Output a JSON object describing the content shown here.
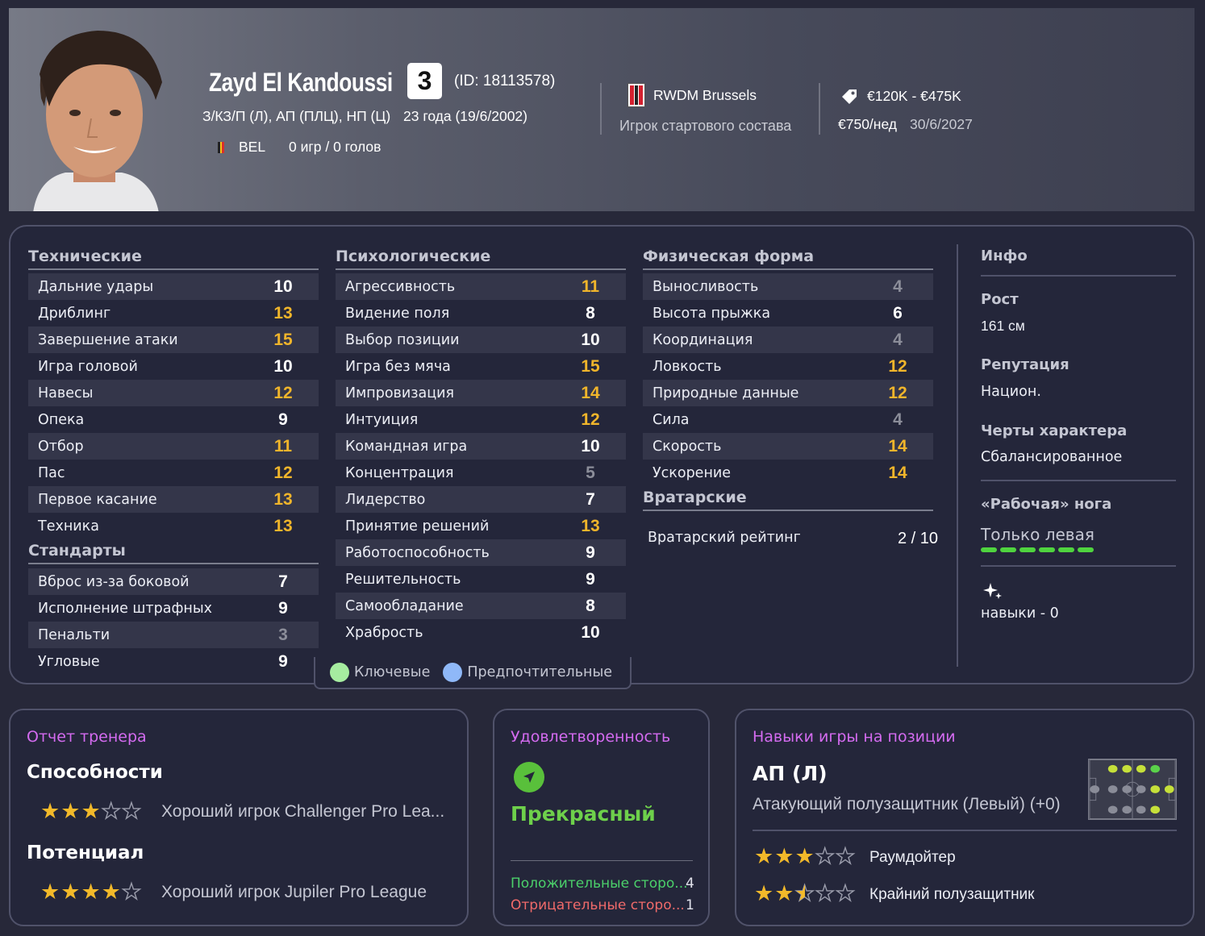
{
  "player": {
    "name": "Zayd El Kandoussi",
    "number": "3",
    "id": "(ID: 18113578)",
    "positions": "З/КЗ/П (Л), АП (ПЛЦ), НП (Ц)",
    "age": "23 года (19/6/2002)",
    "nation": "BEL",
    "caps": "0 игр / 0 голов"
  },
  "club": {
    "name": "RWDM Brussels",
    "role": "Игрок стартового состава"
  },
  "finance": {
    "value": "€120K - €475K",
    "wage": "€750/нед",
    "contract_end": "30/6/2027"
  },
  "technical": {
    "title": "Технические",
    "rows": [
      {
        "label": "Дальние удары",
        "value": "10",
        "level": "mid"
      },
      {
        "label": "Дриблинг",
        "value": "13",
        "level": "high"
      },
      {
        "label": "Завершение атаки",
        "value": "15",
        "level": "high"
      },
      {
        "label": "Игра головой",
        "value": "10",
        "level": "mid"
      },
      {
        "label": "Навесы",
        "value": "12",
        "level": "high"
      },
      {
        "label": "Опека",
        "value": "9",
        "level": "mid"
      },
      {
        "label": "Отбор",
        "value": "11",
        "level": "high"
      },
      {
        "label": "Пас",
        "value": "12",
        "level": "high"
      },
      {
        "label": "Первое касание",
        "value": "13",
        "level": "high"
      },
      {
        "label": "Техника",
        "value": "13",
        "level": "high"
      }
    ]
  },
  "set_pieces": {
    "title": "Стандарты",
    "rows": [
      {
        "label": "Вброс из-за боковой",
        "value": "7",
        "level": "mid"
      },
      {
        "label": "Исполнение штрафных",
        "value": "9",
        "level": "mid"
      },
      {
        "label": "Пенальти",
        "value": "3",
        "level": "low"
      },
      {
        "label": "Угловые",
        "value": "9",
        "level": "mid"
      }
    ]
  },
  "mental": {
    "title": "Психологические",
    "rows": [
      {
        "label": "Агрессивность",
        "value": "11",
        "level": "high"
      },
      {
        "label": "Видение поля",
        "value": "8",
        "level": "mid"
      },
      {
        "label": "Выбор позиции",
        "value": "10",
        "level": "mid"
      },
      {
        "label": "Игра без мяча",
        "value": "15",
        "level": "high"
      },
      {
        "label": "Импровизация",
        "value": "14",
        "level": "high"
      },
      {
        "label": "Интуиция",
        "value": "12",
        "level": "high"
      },
      {
        "label": "Командная игра",
        "value": "10",
        "level": "mid"
      },
      {
        "label": "Концентрация",
        "value": "5",
        "level": "low"
      },
      {
        "label": "Лидерство",
        "value": "7",
        "level": "mid"
      },
      {
        "label": "Принятие решений",
        "value": "13",
        "level": "high"
      },
      {
        "label": "Работоспособность",
        "value": "9",
        "level": "mid"
      },
      {
        "label": "Решительность",
        "value": "9",
        "level": "mid"
      },
      {
        "label": "Самообладание",
        "value": "8",
        "level": "mid"
      },
      {
        "label": "Храбрость",
        "value": "10",
        "level": "mid"
      }
    ]
  },
  "physical": {
    "title": "Физическая форма",
    "rows": [
      {
        "label": "Выносливость",
        "value": "4",
        "level": "low"
      },
      {
        "label": "Высота прыжка",
        "value": "6",
        "level": "mid"
      },
      {
        "label": "Координация",
        "value": "4",
        "level": "low"
      },
      {
        "label": "Ловкость",
        "value": "12",
        "level": "high"
      },
      {
        "label": "Природные данные",
        "value": "12",
        "level": "high"
      },
      {
        "label": "Сила",
        "value": "4",
        "level": "low"
      },
      {
        "label": "Скорость",
        "value": "14",
        "level": "high"
      },
      {
        "label": "Ускорение",
        "value": "14",
        "level": "high"
      }
    ]
  },
  "goalkeeping": {
    "title": "Вратарские",
    "label": "Вратарский рейтинг",
    "value": "2 / 10"
  },
  "info": {
    "title": "Инфо",
    "height_label": "Рост",
    "height": "161 см",
    "reputation_label": "Репутация",
    "reputation": "Национ.",
    "personality_label": "Черты характера",
    "personality": "Сбалансированное",
    "foot_label": "«Рабочая» нога",
    "foot": "Только левая",
    "foot_level": 1.0,
    "skills": "навыки - 0"
  },
  "legend": {
    "key": "Ключевые",
    "preferred": "Предпочтительные",
    "key_color": "#a6eca0",
    "preferred_color": "#8fb8f8"
  },
  "coach_report": {
    "title": "Отчет тренера",
    "ability_label": "Способности",
    "ability_stars": 3,
    "ability_text": "Хороший игрок Challenger Pro Lea...",
    "potential_label": "Потенциал",
    "potential_stars": 4,
    "potential_text": "Хороший игрок Jupiler Pro League"
  },
  "satisfaction": {
    "title": "Удовлетворенность",
    "status": "Прекрасный",
    "positive_label": "Положительные сторо...",
    "positive_count": "4",
    "negative_label": "Отрицательные сторо...",
    "negative_count": "1"
  },
  "position_skills": {
    "title": "Навыки игры на позиции",
    "position": "АП (Л)",
    "description": "Атакующий полузащитник (Левый) (+0)",
    "roles": [
      {
        "name": "Раумдойтер",
        "stars": 3
      },
      {
        "name": "Крайний полузащитник",
        "stars": 2.5
      }
    ]
  },
  "colors": {
    "high": "#f0b52b",
    "low": "#8b8d99",
    "accent_title": "#d46bf0",
    "positive": "#4bd06a",
    "negative": "#f06a6a"
  }
}
